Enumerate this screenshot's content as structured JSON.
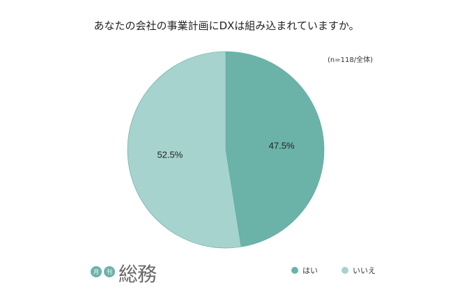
{
  "chart_data": {
    "type": "pie",
    "title": "あなたの会社の事業計画にDXは組み込まれていますか。",
    "note": "(n=118/全体)",
    "categories": [
      "はい",
      "いいえ"
    ],
    "values": [
      47.5,
      52.5
    ],
    "labels": [
      "47.5%",
      "52.5%"
    ],
    "colors": [
      "#6bb3a9",
      "#a6d3ce"
    ],
    "start_angle": "top",
    "direction": "clockwise",
    "legend_position": "bottom-right"
  },
  "logo": {
    "badge1": "月",
    "badge2": "刊",
    "text": "総務"
  }
}
